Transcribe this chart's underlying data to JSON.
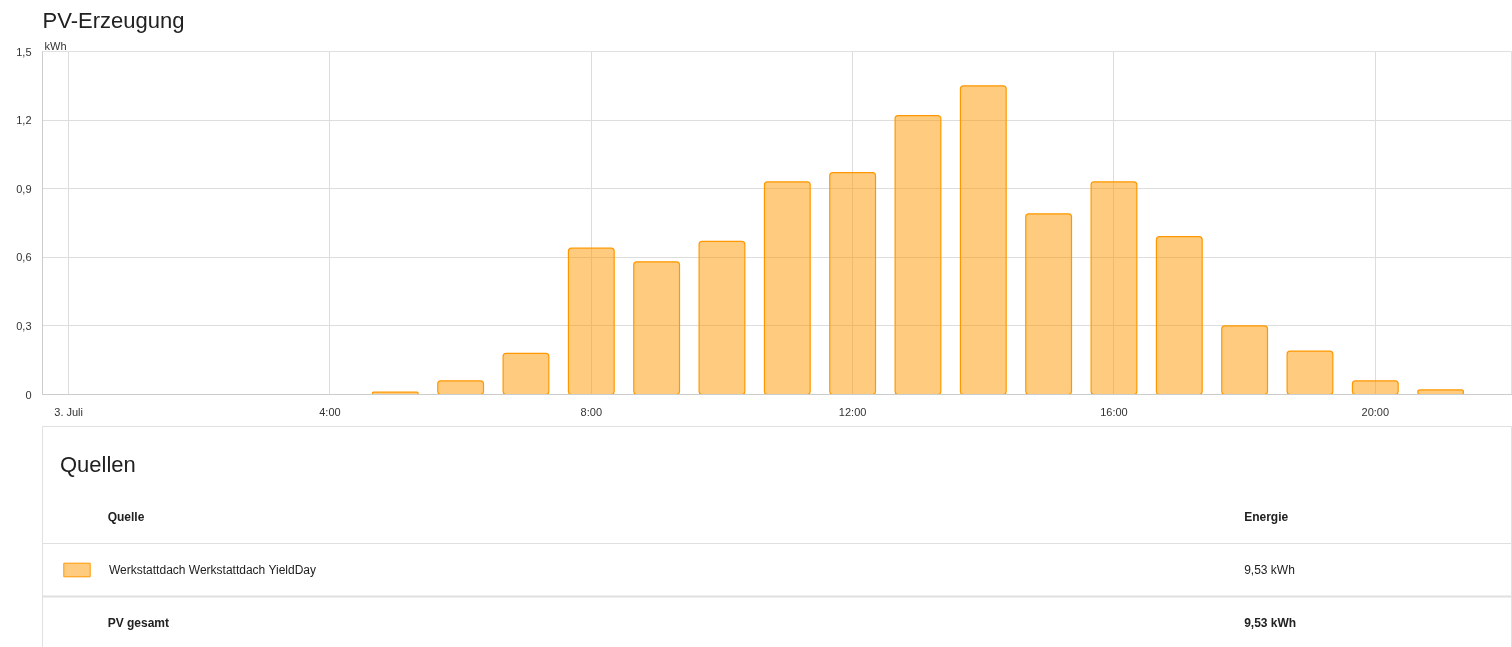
{
  "chart_data": [
    {
      "type": "bar",
      "title": "PV-Erzeugung",
      "ylabel": "kWh",
      "x": [
        5,
        6,
        7,
        8,
        9,
        10,
        11,
        12,
        13,
        14,
        15,
        16,
        17,
        18,
        19,
        20,
        21
      ],
      "series": [
        {
          "name": "Werkstattdach Werkstattdach YieldDay",
          "color": "#ff9800",
          "values": [
            0.01,
            0.06,
            0.18,
            0.64,
            0.58,
            0.67,
            0.93,
            0.97,
            1.22,
            1.35,
            0.79,
            0.93,
            0.69,
            0.3,
            0.19,
            0.06,
            0.02
          ]
        }
      ],
      "xlim": [
        -0.4,
        22.1
      ],
      "xticks": [
        {
          "value": 0,
          "label": "3. Juli"
        },
        {
          "value": 4,
          "label": "4:00"
        },
        {
          "value": 8,
          "label": "8:00"
        },
        {
          "value": 12,
          "label": "12:00"
        },
        {
          "value": 16,
          "label": "16:00"
        },
        {
          "value": 20,
          "label": "20:00"
        }
      ],
      "ylim": [
        0,
        1.5
      ],
      "yticks": [
        0,
        {
          "value": 0.3,
          "label": "0,3"
        },
        {
          "value": 0.6,
          "label": "0,6"
        },
        {
          "value": 0.9,
          "label": "0,9"
        },
        {
          "value": 1.2,
          "label": "1,2"
        },
        {
          "value": 1.5,
          "label": "1,5"
        }
      ],
      "grid": true,
      "legend": "bottom"
    },
    {
      "type": "other",
      "title": "Quellen",
      "annotations": [
        "Quelle",
        "Energie",
        "9,53 kWh",
        "PV gesamt",
        "9,53 kWh"
      ]
    }
  ]
}
